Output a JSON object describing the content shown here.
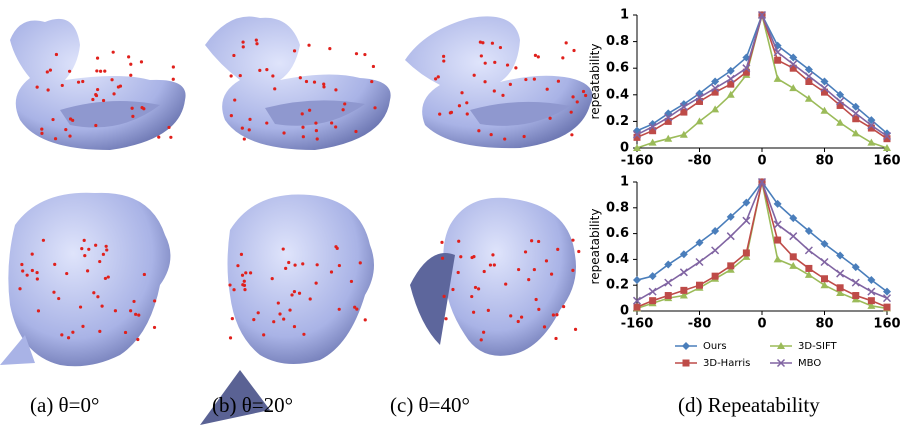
{
  "captions": [
    "(a) θ=0°",
    "(b) θ=20°",
    "(c) θ=40°",
    "(d) Repeatability"
  ],
  "chart_data": [
    {
      "type": "line",
      "y_label": "repeatability",
      "x": [
        -160,
        -140,
        -120,
        -100,
        -80,
        -60,
        -40,
        -20,
        0,
        20,
        40,
        60,
        80,
        100,
        120,
        140,
        160
      ],
      "xlim": [
        -160,
        160
      ],
      "xticks": [
        -160,
        -80,
        0,
        80,
        160
      ],
      "ylim": [
        0,
        1
      ],
      "yticks": [
        0,
        0.2,
        0.4,
        0.6,
        0.8,
        1
      ],
      "series": [
        {
          "name": "Ours",
          "color": "#4a7ebb",
          "marker": "diamond",
          "values": [
            0.13,
            0.18,
            0.26,
            0.33,
            0.41,
            0.5,
            0.58,
            0.68,
            1,
            0.77,
            0.68,
            0.59,
            0.5,
            0.4,
            0.31,
            0.21,
            0.11
          ]
        },
        {
          "name": "3D-SIFT",
          "color": "#9bbb59",
          "marker": "triangle",
          "values": [
            0,
            0.04,
            0.07,
            0.1,
            0.2,
            0.29,
            0.4,
            0.55,
            1,
            0.52,
            0.45,
            0.37,
            0.28,
            0.19,
            0.11,
            0.04,
            0
          ]
        },
        {
          "name": "3D-Harris",
          "color": "#be4b48",
          "marker": "square",
          "values": [
            0.08,
            0.13,
            0.2,
            0.27,
            0.35,
            0.42,
            0.48,
            0.57,
            1,
            0.66,
            0.6,
            0.5,
            0.42,
            0.32,
            0.22,
            0.15,
            0.07
          ]
        },
        {
          "name": "MBO",
          "color": "#8064a2",
          "marker": "x",
          "values": [
            0.1,
            0.16,
            0.23,
            0.31,
            0.38,
            0.45,
            0.52,
            0.6,
            1,
            0.72,
            0.63,
            0.54,
            0.45,
            0.35,
            0.26,
            0.17,
            0.09
          ]
        }
      ]
    },
    {
      "type": "line",
      "y_label": "repeatability",
      "x": [
        -160,
        -140,
        -120,
        -100,
        -80,
        -60,
        -40,
        -20,
        0,
        20,
        40,
        60,
        80,
        100,
        120,
        140,
        160
      ],
      "xlim": [
        -160,
        160
      ],
      "xticks": [
        -160,
        -80,
        0,
        80,
        160
      ],
      "ylim": [
        0,
        1
      ],
      "yticks": [
        0,
        0.2,
        0.4,
        0.6,
        0.8,
        1
      ],
      "legend": "bottom",
      "series": [
        {
          "name": "Ours",
          "color": "#4a7ebb",
          "marker": "diamond",
          "values": [
            0.24,
            0.27,
            0.36,
            0.44,
            0.53,
            0.62,
            0.73,
            0.84,
            1,
            0.83,
            0.72,
            0.62,
            0.52,
            0.43,
            0.34,
            0.24,
            0.15
          ]
        },
        {
          "name": "3D-SIFT",
          "color": "#9bbb59",
          "marker": "triangle",
          "values": [
            0.02,
            0.06,
            0.1,
            0.12,
            0.18,
            0.25,
            0.32,
            0.42,
            1,
            0.4,
            0.35,
            0.28,
            0.2,
            0.14,
            0.09,
            0.04,
            0.02
          ]
        },
        {
          "name": "3D-Harris",
          "color": "#be4b48",
          "marker": "square",
          "values": [
            0.03,
            0.08,
            0.12,
            0.16,
            0.2,
            0.27,
            0.35,
            0.45,
            1,
            0.55,
            0.42,
            0.33,
            0.25,
            0.18,
            0.12,
            0.08,
            0.03
          ]
        },
        {
          "name": "MBO",
          "color": "#8064a2",
          "marker": "x",
          "values": [
            0.08,
            0.15,
            0.22,
            0.3,
            0.38,
            0.47,
            0.58,
            0.7,
            1,
            0.67,
            0.58,
            0.47,
            0.38,
            0.29,
            0.22,
            0.15,
            0.1
          ]
        }
      ]
    }
  ]
}
